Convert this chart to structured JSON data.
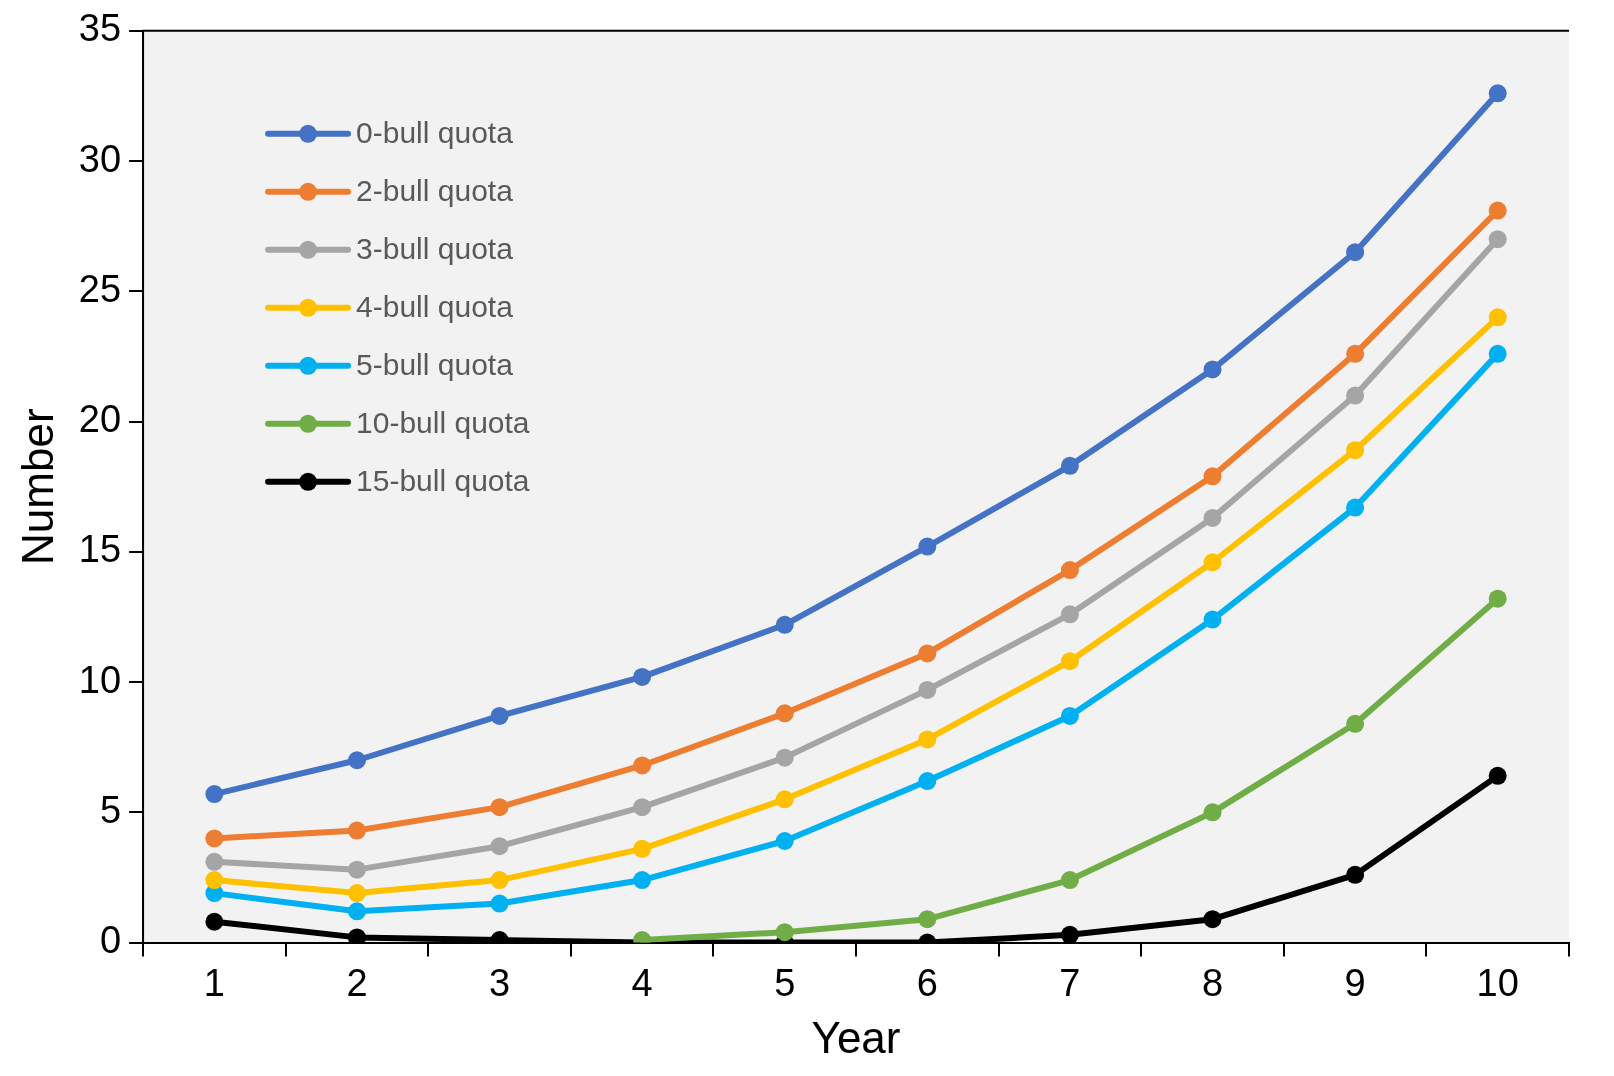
{
  "chart_data": {
    "type": "line",
    "xlabel": "Year",
    "ylabel": "Number",
    "categories": [
      "1",
      "2",
      "3",
      "4",
      "5",
      "6",
      "7",
      "8",
      "9",
      "10"
    ],
    "ylim": [
      0,
      35
    ],
    "yticks": [
      0,
      5,
      10,
      15,
      20,
      25,
      30,
      35
    ],
    "grid": false,
    "legend": "top left",
    "marker": "circle",
    "line_style": "solid",
    "series": [
      {
        "name": "0-bull quota",
        "color": "#4472c4",
        "values": [
          5.7,
          7.0,
          8.7,
          10.2,
          12.2,
          15.2,
          18.3,
          22.0,
          26.5,
          32.6
        ]
      },
      {
        "name": "2-bull quota",
        "color": "#ed7d31",
        "values": [
          4.0,
          4.3,
          5.2,
          6.8,
          8.8,
          11.1,
          14.3,
          17.9,
          22.6,
          28.1
        ]
      },
      {
        "name": "3-bull quota",
        "color": "#a5a5a5",
        "values": [
          3.1,
          2.8,
          3.7,
          5.2,
          7.1,
          9.7,
          12.6,
          16.3,
          21.0,
          27.0
        ]
      },
      {
        "name": "4-bull quota",
        "color": "#ffc000",
        "values": [
          2.4,
          1.9,
          2.4,
          3.6,
          5.5,
          7.8,
          10.8,
          14.6,
          18.9,
          24.0
        ]
      },
      {
        "name": "5-bull quota",
        "color": "#00b0f0",
        "values": [
          1.9,
          1.2,
          1.5,
          2.4,
          3.9,
          6.2,
          8.7,
          12.4,
          16.7,
          22.6
        ]
      },
      {
        "name": "10-bull quota",
        "color": "#70ad47",
        "values": [
          null,
          null,
          null,
          0.1,
          0.4,
          0.9,
          2.4,
          5.0,
          8.4,
          13.2
        ]
      },
      {
        "name": "15-bull quota",
        "color": "#000000",
        "values": [
          0.8,
          0.2,
          0.1,
          0.0,
          0.0,
          0.0,
          0.3,
          0.9,
          2.6,
          6.4
        ]
      }
    ]
  }
}
